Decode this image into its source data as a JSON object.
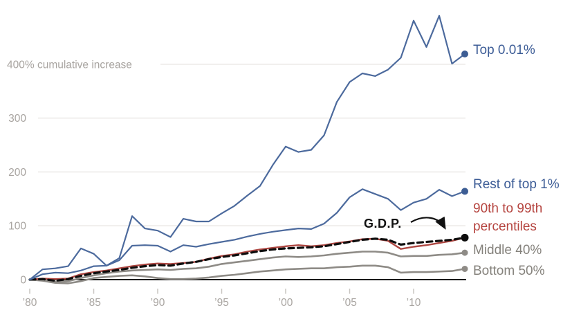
{
  "chart_data": {
    "type": "line",
    "title": "",
    "ylabel": "% cumulative increase",
    "xlabel": "",
    "x": [
      1980,
      1981,
      1982,
      1983,
      1984,
      1985,
      1986,
      1987,
      1988,
      1989,
      1990,
      1991,
      1992,
      1993,
      1994,
      1995,
      1996,
      1997,
      1998,
      1999,
      2000,
      2001,
      2002,
      2003,
      2004,
      2005,
      2006,
      2007,
      2008,
      2009,
      2010,
      2011,
      2012,
      2013,
      2014
    ],
    "xlim": [
      1980,
      2014
    ],
    "ylim": [
      -10,
      500
    ],
    "grid": "horizontal-only",
    "legend_position": "right",
    "y_ticks": [
      {
        "value": 0,
        "label": "0",
        "grid": false
      },
      {
        "value": 100,
        "label": "100",
        "grid": true
      },
      {
        "value": 200,
        "label": "200",
        "grid": true
      },
      {
        "value": 300,
        "label": "300",
        "grid": true
      },
      {
        "value": 400,
        "label": "400% cumulative increase",
        "grid": true,
        "align": "left",
        "grid_start": 232
      }
    ],
    "x_ticks": [
      {
        "value": 1980,
        "label": "’80"
      },
      {
        "value": 1985,
        "label": "’85"
      },
      {
        "value": 1990,
        "label": "’90"
      },
      {
        "value": 1995,
        "label": "’95"
      },
      {
        "value": 2000,
        "label": "’00"
      },
      {
        "value": 2005,
        "label": "’05"
      },
      {
        "value": 2010,
        "label": "’10"
      }
    ],
    "series": [
      {
        "id": "top001",
        "name": "Top 0.01%",
        "color": "#4c6a9d",
        "label_color": "#3c5c96",
        "dashed": false,
        "dot": true,
        "dot_color": "#3d5d94",
        "values": [
          0,
          19,
          21,
          25,
          58,
          48,
          26,
          40,
          118,
          95,
          91,
          79,
          113,
          108,
          108,
          123,
          137,
          156,
          174,
          213,
          247,
          237,
          241,
          268,
          330,
          367,
          383,
          378,
          390,
          412,
          481,
          432,
          490,
          401,
          419
        ]
      },
      {
        "id": "rest_top1",
        "name": "Rest of top 1%",
        "color": "#4c6a9d",
        "label_color": "#3c5c96",
        "dashed": false,
        "dot": true,
        "dot_color": "#3d5d94",
        "values": [
          0,
          10,
          13,
          12,
          17,
          25,
          26,
          36,
          63,
          64,
          63,
          52,
          64,
          61,
          66,
          70,
          74,
          80,
          85,
          89,
          92,
          95,
          94,
          104,
          124,
          153,
          168,
          159,
          150,
          129,
          143,
          150,
          167,
          155,
          164
        ]
      },
      {
        "id": "gdp",
        "name": "G.D.P.",
        "color": "#0d0d0d",
        "label_color": "#111111",
        "dashed": true,
        "dot": true,
        "dot_color": "#0d0d0d",
        "values": [
          0,
          1,
          -2,
          1,
          7,
          12,
          15,
          18,
          22,
          25,
          27,
          26,
          30,
          33,
          38,
          42,
          45,
          49,
          53,
          56,
          58,
          59,
          60,
          62,
          66,
          70,
          74,
          76,
          74,
          65,
          68,
          70,
          72,
          74,
          78
        ]
      },
      {
        "id": "p90_99",
        "name": "90th to 99th percentiles",
        "color": "#ae4742",
        "label_color": "#b5443f",
        "dashed": false,
        "dot": false,
        "dot_color": "#ae4742",
        "values": [
          0,
          2,
          1,
          2,
          10,
          14,
          17,
          21,
          25,
          28,
          30,
          29,
          31,
          33,
          39,
          44,
          47,
          52,
          56,
          59,
          62,
          64,
          62,
          64,
          68,
          71,
          75,
          76,
          72,
          57,
          61,
          64,
          68,
          72,
          78
        ]
      },
      {
        "id": "middle40",
        "name": "Middle 40%",
        "color": "#8e8b86",
        "label_color": "#85827c",
        "dashed": false,
        "dot": true,
        "dot_color": "#8e8b86",
        "values": [
          0,
          0,
          -4,
          -3,
          3,
          8,
          12,
          15,
          17,
          18,
          19,
          18,
          20,
          21,
          24,
          29,
          32,
          35,
          38,
          41,
          43,
          42,
          43,
          45,
          48,
          50,
          52,
          52,
          50,
          43,
          44,
          44,
          46,
          47,
          50
        ]
      },
      {
        "id": "bottom50",
        "name": "Bottom 50%",
        "color": "#8e8b86",
        "label_color": "#85827c",
        "dashed": false,
        "dot": true,
        "dot_color": "#8e8b86",
        "values": [
          0,
          -2,
          -6,
          -7,
          -3,
          3,
          5,
          7,
          8,
          6,
          3,
          1,
          1,
          2,
          4,
          7,
          9,
          12,
          15,
          17,
          19,
          20,
          21,
          21,
          23,
          24,
          26,
          26,
          23,
          13,
          14,
          14,
          15,
          16,
          20
        ]
      }
    ],
    "annotations": [
      {
        "id": "gdp_callout",
        "text": "G.D.P.",
        "arrow_to_series": "gdp"
      }
    ]
  },
  "axis_colors": {
    "grid": "#e8e6e3",
    "tick": "#c8c5c1",
    "tick_text": "#a8a4a0",
    "zero_line": "#1a1a1a"
  }
}
